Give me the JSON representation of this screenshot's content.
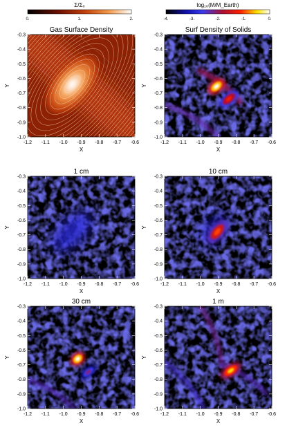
{
  "colorbars": [
    {
      "label": "Σ/Σ₀",
      "ticks": [
        "0.",
        "1.",
        "2."
      ],
      "range": [
        0,
        2
      ]
    },
    {
      "label": "log₁₀(M/M_Earth)",
      "ticks": [
        "-4.",
        "-3.",
        "-2.",
        "-1.",
        "0."
      ],
      "range": [
        -4,
        0
      ]
    }
  ],
  "chart_data": [
    {
      "type": "heatmap",
      "title": "Gas Surface Density",
      "xlabel": "X",
      "ylabel": "Y",
      "xlim": [
        -1.2,
        -0.6
      ],
      "ylim": [
        -1.0,
        -0.3
      ],
      "xticks": [
        "-1.2",
        "-1.1",
        "-1.0",
        "-0.9",
        "-0.8",
        "-0.7",
        "-0.6"
      ],
      "yticks": [
        "-1.0",
        "-0.9",
        "-0.8",
        "-0.7",
        "-0.6",
        "-0.5",
        "-0.4",
        "-0.3"
      ],
      "colormap": "heat",
      "contours": true,
      "features": [
        {
          "kind": "band",
          "x0": -1.17,
          "y0": -0.35,
          "x1": -0.62,
          "y1": -0.95,
          "width": 0.2,
          "value": 1.0
        },
        {
          "kind": "blob",
          "x": -0.95,
          "y": -0.64,
          "rx": 0.08,
          "ry": 0.045,
          "angle": -50,
          "value": 2.0
        }
      ]
    },
    {
      "type": "heatmap",
      "title": "Surf Density of Solids",
      "xlabel": "X",
      "ylabel": "Y",
      "xlim": [
        -1.2,
        -0.6
      ],
      "ylim": [
        -1.0,
        -0.3
      ],
      "xticks": [
        "-1.2",
        "-1.1",
        "-1.0",
        "-0.9",
        "-0.8",
        "-0.7",
        "-0.6"
      ],
      "yticks": [
        "-1.0",
        "-0.9",
        "-0.8",
        "-0.7",
        "-0.6",
        "-0.5",
        "-0.4",
        "-0.3"
      ],
      "colormap": "log",
      "features": [
        {
          "kind": "arc",
          "x0": -1.2,
          "y0": -0.78,
          "x1": -0.9,
          "y1": -1.0,
          "width": 0.02,
          "value": -2.3
        },
        {
          "kind": "arc",
          "x0": -1.0,
          "y0": -0.55,
          "x1": -0.78,
          "y1": -0.76,
          "width": 0.03,
          "value": -2.0
        },
        {
          "kind": "blob",
          "x": -0.91,
          "y": -0.655,
          "rx": 0.025,
          "ry": 0.015,
          "angle": -40,
          "value": 0.0
        },
        {
          "kind": "blob",
          "x": -0.84,
          "y": -0.74,
          "rx": 0.03,
          "ry": 0.015,
          "angle": -40,
          "value": -1.2
        }
      ]
    },
    {
      "type": "heatmap",
      "title": "1 cm",
      "xlabel": "X",
      "ylabel": "Y",
      "xlim": [
        -1.2,
        -0.6
      ],
      "ylim": [
        -1.0,
        -0.3
      ],
      "xticks": [
        "-1.2",
        "-1.1",
        "-1.0",
        "-0.9",
        "-0.8",
        "-0.7",
        "-0.6"
      ],
      "yticks": [
        "-1.0",
        "-0.9",
        "-0.8",
        "-0.7",
        "-0.6",
        "-0.5",
        "-0.4",
        "-0.3"
      ],
      "colormap": "log",
      "features": [
        {
          "kind": "diffuse",
          "x": -0.95,
          "y": -0.68,
          "rx": 0.14,
          "ry": 0.07,
          "angle": -45,
          "value": -2.8
        }
      ]
    },
    {
      "type": "heatmap",
      "title": "10 cm",
      "xlabel": "X",
      "ylabel": "Y",
      "xlim": [
        -1.2,
        -0.6
      ],
      "ylim": [
        -1.0,
        -0.3
      ],
      "xticks": [
        "-1.2",
        "-1.1",
        "-1.0",
        "-0.9",
        "-0.8",
        "-0.7",
        "-0.6"
      ],
      "yticks": [
        "-1.0",
        "-0.9",
        "-0.8",
        "-0.7",
        "-0.6",
        "-0.5",
        "-0.4",
        "-0.3"
      ],
      "colormap": "log",
      "features": [
        {
          "kind": "diffuse",
          "x": -0.92,
          "y": -0.66,
          "rx": 0.09,
          "ry": 0.05,
          "angle": -50,
          "value": -3.0
        },
        {
          "kind": "blob",
          "x": -0.905,
          "y": -0.68,
          "rx": 0.035,
          "ry": 0.018,
          "angle": -50,
          "value": -1.0
        }
      ]
    },
    {
      "type": "heatmap",
      "title": "30 cm",
      "xlabel": "X",
      "ylabel": "Y",
      "xlim": [
        -1.2,
        -0.6
      ],
      "ylim": [
        -1.0,
        -0.3
      ],
      "xticks": [
        "-1.2",
        "-1.1",
        "-1.0",
        "-0.9",
        "-0.8",
        "-0.7",
        "-0.6"
      ],
      "yticks": [
        "-1.0",
        "-0.9",
        "-0.8",
        "-0.7",
        "-0.6",
        "-0.5",
        "-0.4",
        "-0.3"
      ],
      "colormap": "log",
      "features": [
        {
          "kind": "arc",
          "x0": -1.2,
          "y0": -0.8,
          "x1": -0.94,
          "y1": -1.0,
          "width": 0.02,
          "value": -2.4
        },
        {
          "kind": "blob",
          "x": -0.92,
          "y": -0.66,
          "rx": 0.02,
          "ry": 0.015,
          "angle": -40,
          "value": 0.0
        },
        {
          "kind": "blob",
          "x": -0.86,
          "y": -0.75,
          "rx": 0.025,
          "ry": 0.012,
          "angle": -40,
          "value": -2.0
        }
      ]
    },
    {
      "type": "heatmap",
      "title": "1 m",
      "xlabel": "X",
      "ylabel": "Y",
      "xlim": [
        -1.2,
        -0.6
      ],
      "ylim": [
        -1.0,
        -0.3
      ],
      "xticks": [
        "-1.2",
        "-1.1",
        "-1.0",
        "-0.9",
        "-0.8",
        "-0.7",
        "-0.6"
      ],
      "yticks": [
        "-1.0",
        "-0.9",
        "-0.8",
        "-0.7",
        "-0.6",
        "-0.5",
        "-0.4",
        "-0.3"
      ],
      "colormap": "log",
      "features": [
        {
          "kind": "arc",
          "x0": -1.2,
          "y0": -0.68,
          "x1": -0.98,
          "y1": -1.0,
          "width": 0.02,
          "value": -2.5
        },
        {
          "kind": "arc",
          "x0": -1.0,
          "y0": -0.3,
          "x1": -0.88,
          "y1": -0.7,
          "width": 0.02,
          "value": -2.2
        },
        {
          "kind": "arc",
          "x0": -0.88,
          "y0": -0.7,
          "x1": -0.63,
          "y1": -0.9,
          "width": 0.02,
          "value": -2.4
        },
        {
          "kind": "blob",
          "x": -0.83,
          "y": -0.74,
          "rx": 0.03,
          "ry": 0.015,
          "angle": -35,
          "value": -0.5
        }
      ]
    }
  ]
}
